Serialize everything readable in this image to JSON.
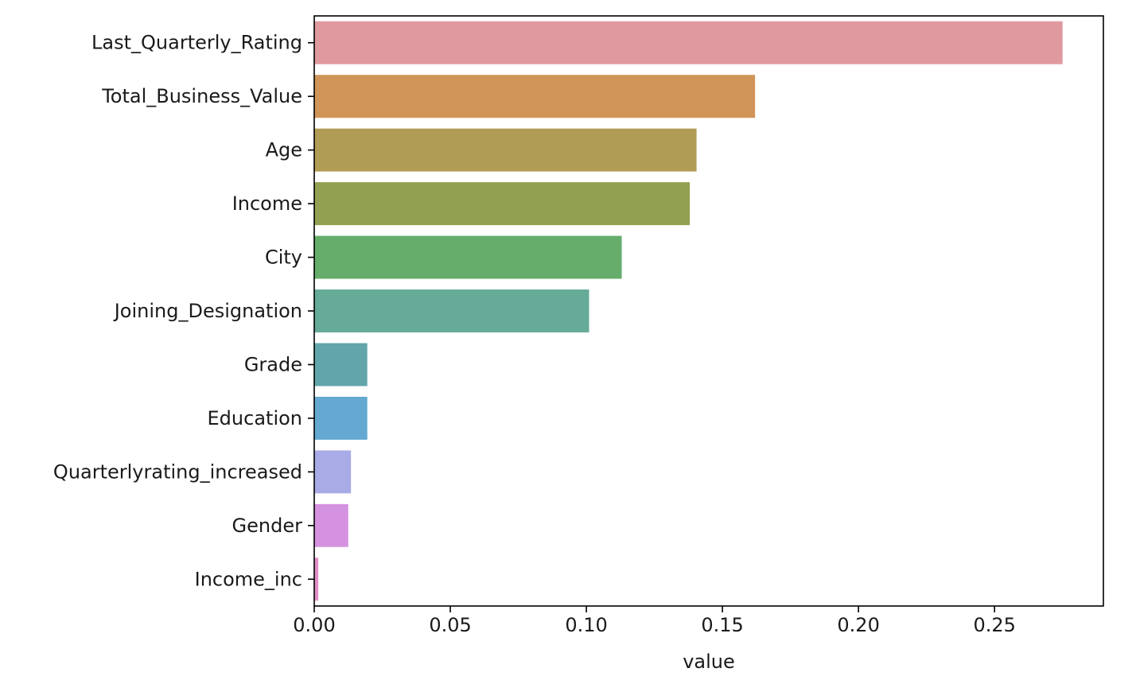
{
  "chart_data": {
    "type": "bar",
    "orientation": "horizontal",
    "title": "",
    "xlabel": "value",
    "ylabel": "",
    "xlim": [
      0,
      0.29
    ],
    "xticks": [
      0.0,
      0.05,
      0.1,
      0.15,
      0.2,
      0.25
    ],
    "xtick_labels": [
      "0.00",
      "0.05",
      "0.10",
      "0.15",
      "0.20",
      "0.25"
    ],
    "grid": false,
    "legend": "none",
    "categories": [
      "Last_Quarterly_Rating",
      "Total_Business_Value",
      "Age",
      "Income",
      "City",
      "Joining_Designation",
      "Grade",
      "Education",
      "Quarterlyrating_increased",
      "Gender",
      "Income_inc"
    ],
    "values": [
      0.275,
      0.162,
      0.1405,
      0.138,
      0.113,
      0.101,
      0.0195,
      0.0195,
      0.0135,
      0.0125,
      0.0015
    ],
    "colors": [
      "#e0999f",
      "#d19458",
      "#b09c55",
      "#92a052",
      "#66ad6c",
      "#66aa98",
      "#62a5aa",
      "#64a9d1",
      "#a9abe6",
      "#d592e0",
      "#e190c6"
    ]
  }
}
